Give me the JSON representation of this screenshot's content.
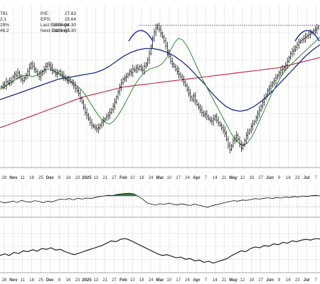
{
  "stats": [
    {
      "left_value": "791",
      "label": "P/E:",
      "value": "27.83"
    },
    {
      "left_value": "2.1",
      "label": "EPS:",
      "value": "25.64"
    },
    {
      "left_value": "29%",
      "label": "Last Earnings:",
      "value": "2025-04-30"
    },
    {
      "left_value": "46.2",
      "label": "Next Earnings:",
      "value": "2025-07-30"
    }
  ],
  "colors": {
    "price_bar": "#111111",
    "ma_short": "#2e8b2e",
    "ma_mid": "#1c2a8c",
    "ma_long": "#c0203a",
    "resistance": "#9b1fb0",
    "arc": "#2233aa",
    "grid": "#dcdcdc",
    "indicator": "#111111",
    "indicator_fill": "#3a7a3a"
  },
  "chart_data": [
    {
      "type": "line",
      "title": "",
      "subtitle": "",
      "xlabel": "",
      "ylabel": "",
      "x_ticks": [
        "28",
        "Nov",
        "11",
        "18",
        "25",
        "Dec",
        "9",
        "16",
        "23",
        "2025",
        "13",
        "21",
        "27",
        "Feb",
        "10",
        "18",
        "24",
        "Mar",
        "10",
        "17",
        "24",
        "Apr",
        "7",
        "14",
        "21",
        "May",
        "12",
        "19",
        "27",
        "Jun",
        "9",
        "16",
        "23",
        "Jul",
        "7"
      ],
      "x_ticks_bold": [
        "Nov",
        "Dec",
        "2025",
        "Feb",
        "Mar",
        "Apr",
        "May",
        "Jun",
        "Jul"
      ],
      "series": [
        {
          "role": "price",
          "style": "ohlc-bars",
          "values": [
            0.52,
            0.54,
            0.53,
            0.56,
            0.55,
            0.57,
            0.56,
            0.6,
            0.62,
            0.61,
            0.63,
            0.6,
            0.58,
            0.57,
            0.59,
            0.61,
            0.64,
            0.67,
            0.7,
            0.68,
            0.66,
            0.64,
            0.62,
            0.6,
            0.62,
            0.64,
            0.66,
            0.68,
            0.7,
            0.69,
            0.67,
            0.65,
            0.64,
            0.62,
            0.63,
            0.64,
            0.62,
            0.61,
            0.6,
            0.58,
            0.57,
            0.58,
            0.56,
            0.55,
            0.53,
            0.51,
            0.49,
            0.47,
            0.43,
            0.4,
            0.36,
            0.32,
            0.3,
            0.27,
            0.24,
            0.22,
            0.21,
            0.2,
            0.19,
            0.2,
            0.22,
            0.24,
            0.26,
            0.27,
            0.29,
            0.3,
            0.32,
            0.34,
            0.37,
            0.4,
            0.44,
            0.48,
            0.52,
            0.55,
            0.58,
            0.59,
            0.6,
            0.62,
            0.64,
            0.63,
            0.66,
            0.65,
            0.67,
            0.66,
            0.68,
            0.66,
            0.65,
            0.68,
            0.7,
            0.73,
            0.78,
            0.84,
            0.9,
            0.95,
            0.98,
            1.0,
            0.97,
            0.94,
            0.91,
            0.88,
            0.84,
            0.8,
            0.76,
            0.72,
            0.7,
            0.68,
            0.66,
            0.64,
            0.62,
            0.6,
            0.58,
            0.56,
            0.53,
            0.5,
            0.47,
            0.44,
            0.42,
            0.45,
            0.41,
            0.38,
            0.36,
            0.34,
            0.32,
            0.3,
            0.31,
            0.29,
            0.27,
            0.26,
            0.25,
            0.27,
            0.29,
            0.26,
            0.24,
            0.22,
            0.2,
            0.18,
            0.16,
            0.11,
            0.06,
            0.03,
            0.06,
            0.1,
            0.12,
            0.14,
            0.11,
            0.07,
            0.04,
            0.07,
            0.1,
            0.14,
            0.16,
            0.18,
            0.21,
            0.23,
            0.25,
            0.28,
            0.31,
            0.34,
            0.37,
            0.4,
            0.43,
            0.46,
            0.49,
            0.51,
            0.53,
            0.55,
            0.57,
            0.59,
            0.61,
            0.63,
            0.65,
            0.66,
            0.67,
            0.69,
            0.72,
            0.75,
            0.78,
            0.8,
            0.81,
            0.83,
            0.85,
            0.87,
            0.88,
            0.89,
            0.9,
            0.91,
            0.92,
            0.93,
            0.94,
            0.95,
            0.96,
            0.97,
            0.98,
            0.99
          ]
        },
        {
          "role": "ma_short",
          "style": "line",
          "values": [
            0.5,
            0.52,
            0.54,
            0.56,
            0.58,
            0.6,
            0.61,
            0.61,
            0.6,
            0.61,
            0.63,
            0.65,
            0.66,
            0.65,
            0.63,
            0.61,
            0.59,
            0.57,
            0.55,
            0.53,
            0.5,
            0.46,
            0.41,
            0.36,
            0.31,
            0.27,
            0.24,
            0.23,
            0.25,
            0.29,
            0.34,
            0.4,
            0.46,
            0.52,
            0.57,
            0.61,
            0.64,
            0.66,
            0.67,
            0.68,
            0.7,
            0.74,
            0.8,
            0.86,
            0.9,
            0.89,
            0.85,
            0.79,
            0.72,
            0.65,
            0.58,
            0.52,
            0.46,
            0.4,
            0.34,
            0.28,
            0.22,
            0.16,
            0.11,
            0.08,
            0.06,
            0.08,
            0.12,
            0.18,
            0.25,
            0.32,
            0.39,
            0.46,
            0.52,
            0.58,
            0.63,
            0.67,
            0.7,
            0.73,
            0.76,
            0.79,
            0.82,
            0.85,
            0.88,
            0.91
          ]
        },
        {
          "role": "ma_mid",
          "style": "line",
          "values": [
            0.42,
            0.44,
            0.46,
            0.48,
            0.5,
            0.52,
            0.54,
            0.56,
            0.58,
            0.59,
            0.6,
            0.61,
            0.62,
            0.63,
            0.65,
            0.68,
            0.72,
            0.76,
            0.79,
            0.81,
            0.82,
            0.82,
            0.81,
            0.79,
            0.76,
            0.72,
            0.67,
            0.61,
            0.55,
            0.48,
            0.42,
            0.37,
            0.34,
            0.33,
            0.34,
            0.37,
            0.41,
            0.46,
            0.52,
            0.58,
            0.64,
            0.7,
            0.76,
            0.81,
            0.85
          ]
        },
        {
          "role": "ma_long",
          "style": "line",
          "values": [
            0.2,
            0.23,
            0.26,
            0.29,
            0.32,
            0.35,
            0.38,
            0.41,
            0.44,
            0.46,
            0.48,
            0.5,
            0.52,
            0.53,
            0.54,
            0.55,
            0.56,
            0.57,
            0.58,
            0.59,
            0.6,
            0.61,
            0.62,
            0.63,
            0.64,
            0.65,
            0.66,
            0.67,
            0.69,
            0.71,
            0.73,
            0.75
          ]
        }
      ],
      "annotations": [
        {
          "kind": "horizontal-line",
          "role": "resistance",
          "style": "dotted",
          "level": 0.97
        },
        {
          "kind": "arc",
          "role": "top",
          "at": 0.44
        },
        {
          "kind": "arc",
          "role": "top",
          "at": 0.96
        }
      ]
    },
    {
      "type": "line",
      "title": "",
      "role": "oscillator",
      "values": [
        0.5,
        0.45,
        0.48,
        0.52,
        0.47,
        0.55,
        0.5,
        0.48,
        0.54,
        0.51,
        0.46,
        0.52,
        0.49,
        0.55,
        0.6,
        0.58,
        0.62,
        0.57,
        0.63,
        0.6,
        0.64,
        0.62,
        0.66,
        0.7,
        0.72,
        0.75,
        0.74,
        0.78,
        0.8,
        0.82,
        0.83,
        0.8,
        0.7,
        0.6,
        0.45,
        0.4,
        0.36,
        0.42,
        0.39,
        0.44,
        0.4,
        0.37,
        0.41,
        0.38,
        0.35,
        0.4,
        0.36,
        0.32,
        0.28,
        0.34,
        0.38,
        0.42,
        0.46,
        0.5,
        0.54,
        0.52,
        0.56,
        0.55,
        0.58,
        0.62,
        0.6,
        0.63,
        0.65,
        0.62,
        0.66,
        0.64,
        0.68,
        0.66,
        0.7,
        0.68,
        0.72,
        0.7,
        0.73,
        0.75,
        0.72
      ],
      "fill_above": 0.72,
      "reference_lines": [
        0.72,
        0.3
      ]
    },
    {
      "type": "line",
      "title": "",
      "role": "relative-strength",
      "values": [
        0.3,
        0.34,
        0.3,
        0.38,
        0.35,
        0.42,
        0.4,
        0.45,
        0.41,
        0.48,
        0.46,
        0.5,
        0.44,
        0.46,
        0.4,
        0.36,
        0.32,
        0.36,
        0.4,
        0.44,
        0.48,
        0.52,
        0.56,
        0.62,
        0.68,
        0.66,
        0.72,
        0.74,
        0.7,
        0.64,
        0.58,
        0.52,
        0.46,
        0.4,
        0.34,
        0.3,
        0.32,
        0.28,
        0.24,
        0.26,
        0.2,
        0.22,
        0.16,
        0.18,
        0.12,
        0.15,
        0.1,
        0.14,
        0.18,
        0.22,
        0.3,
        0.36,
        0.42,
        0.4,
        0.48,
        0.52,
        0.5,
        0.56,
        0.54,
        0.6,
        0.58,
        0.64,
        0.62,
        0.68,
        0.66,
        0.7,
        0.72,
        0.7,
        0.74,
        0.73
      ],
      "reference_lines": []
    }
  ]
}
